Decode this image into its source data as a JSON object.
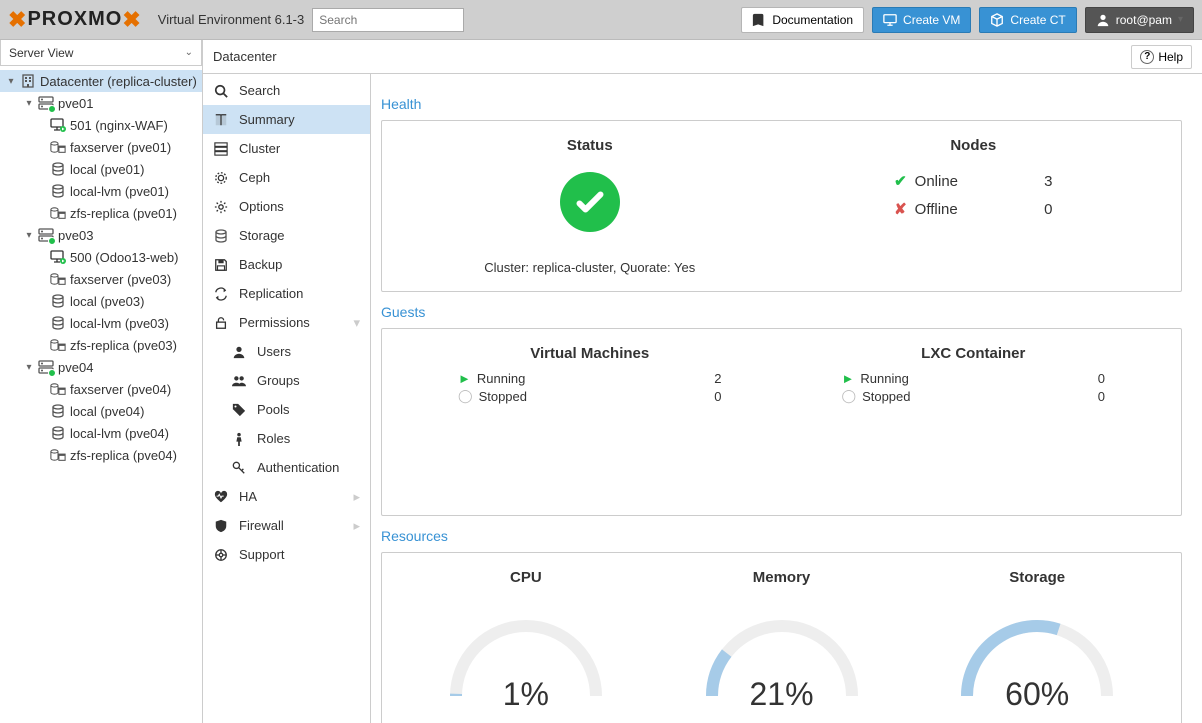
{
  "topbar": {
    "brand": "PROXMO",
    "version": "Virtual Environment 6.1-3",
    "search_placeholder": "Search",
    "doc_label": "Documentation",
    "create_vm_label": "Create VM",
    "create_ct_label": "Create CT",
    "user_label": "root@pam"
  },
  "tree": {
    "view_label": "Server View",
    "root": "Datacenter (replica-cluster)",
    "nodes": [
      {
        "name": "pve01",
        "children": [
          {
            "label": "501 (nginx-WAF)",
            "icon": "vm"
          },
          {
            "label": "faxserver (pve01)",
            "icon": "storage-dir"
          },
          {
            "label": "local (pve01)",
            "icon": "storage"
          },
          {
            "label": "local-lvm (pve01)",
            "icon": "storage"
          },
          {
            "label": "zfs-replica (pve01)",
            "icon": "storage-dir"
          }
        ]
      },
      {
        "name": "pve03",
        "children": [
          {
            "label": "500 (Odoo13-web)",
            "icon": "vm"
          },
          {
            "label": "faxserver (pve03)",
            "icon": "storage-dir"
          },
          {
            "label": "local (pve03)",
            "icon": "storage"
          },
          {
            "label": "local-lvm (pve03)",
            "icon": "storage"
          },
          {
            "label": "zfs-replica (pve03)",
            "icon": "storage-dir"
          }
        ]
      },
      {
        "name": "pve04",
        "children": [
          {
            "label": "faxserver (pve04)",
            "icon": "storage-dir"
          },
          {
            "label": "local (pve04)",
            "icon": "storage"
          },
          {
            "label": "local-lvm (pve04)",
            "icon": "storage"
          },
          {
            "label": "zfs-replica (pve04)",
            "icon": "storage-dir"
          }
        ]
      }
    ]
  },
  "breadcrumb": "Datacenter",
  "help_label": "Help",
  "config_items": [
    {
      "label": "Search",
      "icon": "search"
    },
    {
      "label": "Summary",
      "icon": "book",
      "selected": true
    },
    {
      "label": "Cluster",
      "icon": "cluster"
    },
    {
      "label": "Ceph",
      "icon": "ceph"
    },
    {
      "label": "Options",
      "icon": "gear"
    },
    {
      "label": "Storage",
      "icon": "storage"
    },
    {
      "label": "Backup",
      "icon": "floppy"
    },
    {
      "label": "Replication",
      "icon": "replication"
    },
    {
      "label": "Permissions",
      "icon": "lock",
      "expandable": true
    },
    {
      "label": "Users",
      "icon": "user",
      "sub": true
    },
    {
      "label": "Groups",
      "icon": "users",
      "sub": true
    },
    {
      "label": "Pools",
      "icon": "tags",
      "sub": true
    },
    {
      "label": "Roles",
      "icon": "male",
      "sub": true
    },
    {
      "label": "Authentication",
      "icon": "key",
      "sub": true
    },
    {
      "label": "HA",
      "icon": "heartbeat",
      "arrow": true
    },
    {
      "label": "Firewall",
      "icon": "shield",
      "arrow": true
    },
    {
      "label": "Support",
      "icon": "support"
    }
  ],
  "health": {
    "section": "Health",
    "status_title": "Status",
    "status_text": "Cluster: replica-cluster, Quorate: Yes",
    "nodes_title": "Nodes",
    "online_label": "Online",
    "online_count": "3",
    "offline_label": "Offline",
    "offline_count": "0",
    "colors": {
      "ok": "#21bf4b",
      "bad": "#d9534f"
    }
  },
  "guests": {
    "section": "Guests",
    "vm_title": "Virtual Machines",
    "lxc_title": "LXC Container",
    "running_label": "Running",
    "stopped_label": "Stopped",
    "vm_running": "2",
    "vm_stopped": "0",
    "lxc_running": "0",
    "lxc_stopped": "0"
  },
  "resources": {
    "section": "Resources",
    "cpu": {
      "title": "CPU",
      "pct": "1%",
      "value": 0.01
    },
    "mem": {
      "title": "Memory",
      "pct": "21%",
      "value": 0.21
    },
    "storage": {
      "title": "Storage",
      "pct": "60%",
      "value": 0.6
    },
    "gauge_fill": "#a6cbe8",
    "gauge_track": "#eeeeee"
  }
}
